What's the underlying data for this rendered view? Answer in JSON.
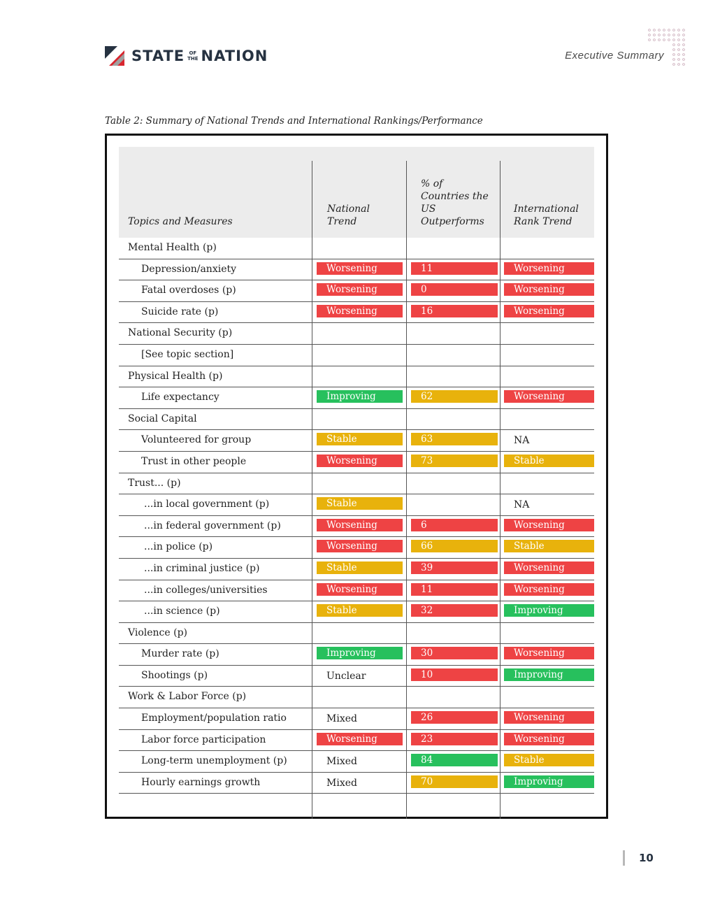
{
  "header": {
    "brand_left": "STATE",
    "brand_of": "OF",
    "brand_the": "THE",
    "brand_right": "NATION",
    "section": "Executive Summary"
  },
  "caption": "Table 2: Summary of National Trends and International Rankings/Performance",
  "table": {
    "col_topics": "Topics and Measures",
    "col_trend": "National Trend",
    "col_pct": "% of Countries the US Outperforms",
    "col_rank": "International Rank Trend",
    "rows": [
      {
        "label": "Mental Health  (p)",
        "indent": 0
      },
      {
        "label": "Depression/anxiety",
        "indent": 1,
        "trend": "Worsening",
        "tc": "r",
        "pct": "11",
        "pc": "r",
        "rank": "Worsening",
        "rc": "r"
      },
      {
        "label": "Fatal overdoses (p)",
        "indent": 1,
        "trend": "Worsening",
        "tc": "r",
        "pct": "0",
        "pc": "r",
        "rank": "Worsening",
        "rc": "r"
      },
      {
        "label": "Suicide rate (p)",
        "indent": 1,
        "trend": "Worsening",
        "tc": "r",
        "pct": "16",
        "pc": "r",
        "rank": "Worsening",
        "rc": "r"
      },
      {
        "label": "National Security (p)",
        "indent": 0
      },
      {
        "label": "[See topic section]",
        "indent": 1
      },
      {
        "label": "Physical Health (p)",
        "indent": 0
      },
      {
        "label": "Life expectancy",
        "indent": 1,
        "trend": "Improving",
        "tc": "g",
        "pct": "62",
        "pc": "y",
        "rank": "Worsening",
        "rc": "r"
      },
      {
        "label": "Social Capital",
        "indent": 0
      },
      {
        "label": "Volunteered for group",
        "indent": 1,
        "trend": "Stable",
        "tc": "y",
        "pct": "63",
        "pc": "y",
        "rank": "NA",
        "rc": "n"
      },
      {
        "label": "Trust in other people",
        "indent": 1,
        "trend": "Worsening",
        "tc": "r",
        "pct": "73",
        "pc": "y",
        "rank": "Stable",
        "rc": "y"
      },
      {
        "label": "Trust... (p)",
        "indent": 0
      },
      {
        "label": "...in local government (p)",
        "indent": 2,
        "trend": "Stable",
        "tc": "y",
        "rank": "NA",
        "rc": "n"
      },
      {
        "label": "...in federal government (p)",
        "indent": 2,
        "trend": "Worsening",
        "tc": "r",
        "pct": "6",
        "pc": "r",
        "rank": "Worsening",
        "rc": "r"
      },
      {
        "label": "...in police (p)",
        "indent": 2,
        "trend": "Worsening",
        "tc": "r",
        "pct": "66",
        "pc": "y",
        "rank": "Stable",
        "rc": "y"
      },
      {
        "label": "...in criminal justice (p)",
        "indent": 2,
        "trend": "Stable",
        "tc": "y",
        "pct": "39",
        "pc": "r",
        "rank": "Worsening",
        "rc": "r"
      },
      {
        "label": "...in colleges/universities",
        "indent": 2,
        "trend": "Worsening",
        "tc": "r",
        "pct": "11",
        "pc": "r",
        "rank": "Worsening",
        "rc": "r"
      },
      {
        "label": "...in science (p)",
        "indent": 2,
        "trend": "Stable",
        "tc": "y",
        "pct": "32",
        "pc": "r",
        "rank": "Improving",
        "rc": "g"
      },
      {
        "label": "Violence (p)",
        "indent": 0
      },
      {
        "label": "Murder rate (p)",
        "indent": 1,
        "trend": "Improving",
        "tc": "g",
        "pct": "30",
        "pc": "r",
        "rank": "Worsening",
        "rc": "r"
      },
      {
        "label": "Shootings (p)",
        "indent": 1,
        "trend": "Unclear",
        "tc": "n",
        "pct": "10",
        "pc": "r",
        "rank": "Improving",
        "rc": "g"
      },
      {
        "label": "Work & Labor Force (p)",
        "indent": 0
      },
      {
        "label": "Employment/population ratio",
        "indent": 1,
        "trend": "Mixed",
        "tc": "n",
        "pct": "26",
        "pc": "r",
        "rank": "Worsening",
        "rc": "r"
      },
      {
        "label": "Labor force participation",
        "indent": 1,
        "trend": "Worsening",
        "tc": "r",
        "pct": "23",
        "pc": "r",
        "rank": "Worsening",
        "rc": "r"
      },
      {
        "label": "Long-term unemployment (p)",
        "indent": 1,
        "trend": "Mixed",
        "tc": "n",
        "pct": "84",
        "pc": "g",
        "rank": "Stable",
        "rc": "y"
      },
      {
        "label": "Hourly earnings growth",
        "indent": 1,
        "trend": "Mixed",
        "tc": "n",
        "pct": "70",
        "pc": "y",
        "rank": "Improving",
        "rc": "g"
      }
    ]
  },
  "colors": {
    "worsening": "#ee4344",
    "stable": "#e8b20c",
    "improving": "#27c05d"
  },
  "page_number": "10"
}
